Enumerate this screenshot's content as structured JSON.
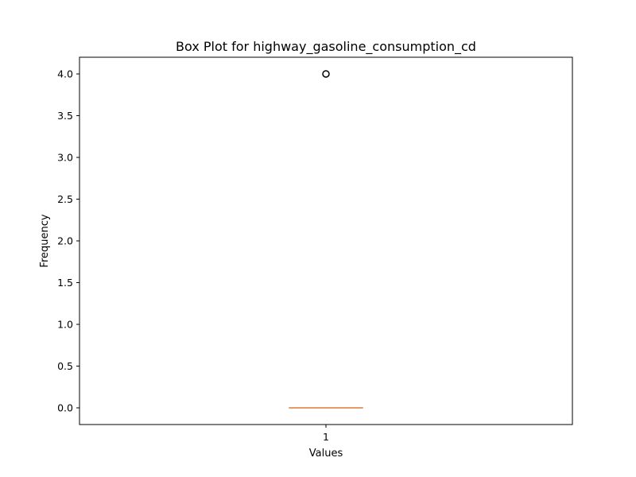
{
  "chart_data": {
    "type": "box",
    "title": "Box Plot for highway_gasoline_consumption_cd",
    "xlabel": "Values",
    "ylabel": "Frequency",
    "categories": [
      "1"
    ],
    "ylim": [
      -0.2,
      4.2
    ],
    "yticks": [
      0.0,
      0.5,
      1.0,
      1.5,
      2.0,
      2.5,
      3.0,
      3.5,
      4.0
    ],
    "ytick_labels": [
      "0.0",
      "0.5",
      "1.0",
      "1.5",
      "2.0",
      "2.5",
      "3.0",
      "3.5",
      "4.0"
    ],
    "boxes": [
      {
        "category": "1",
        "whisker_low": 0.0,
        "q1": 0.0,
        "median": 0.0,
        "q3": 0.0,
        "whisker_high": 0.0,
        "outliers": [
          4.0
        ]
      }
    ],
    "grid": false,
    "colors": {
      "box": "#000000",
      "median": "#e07b39",
      "outlier": "#000000"
    }
  }
}
